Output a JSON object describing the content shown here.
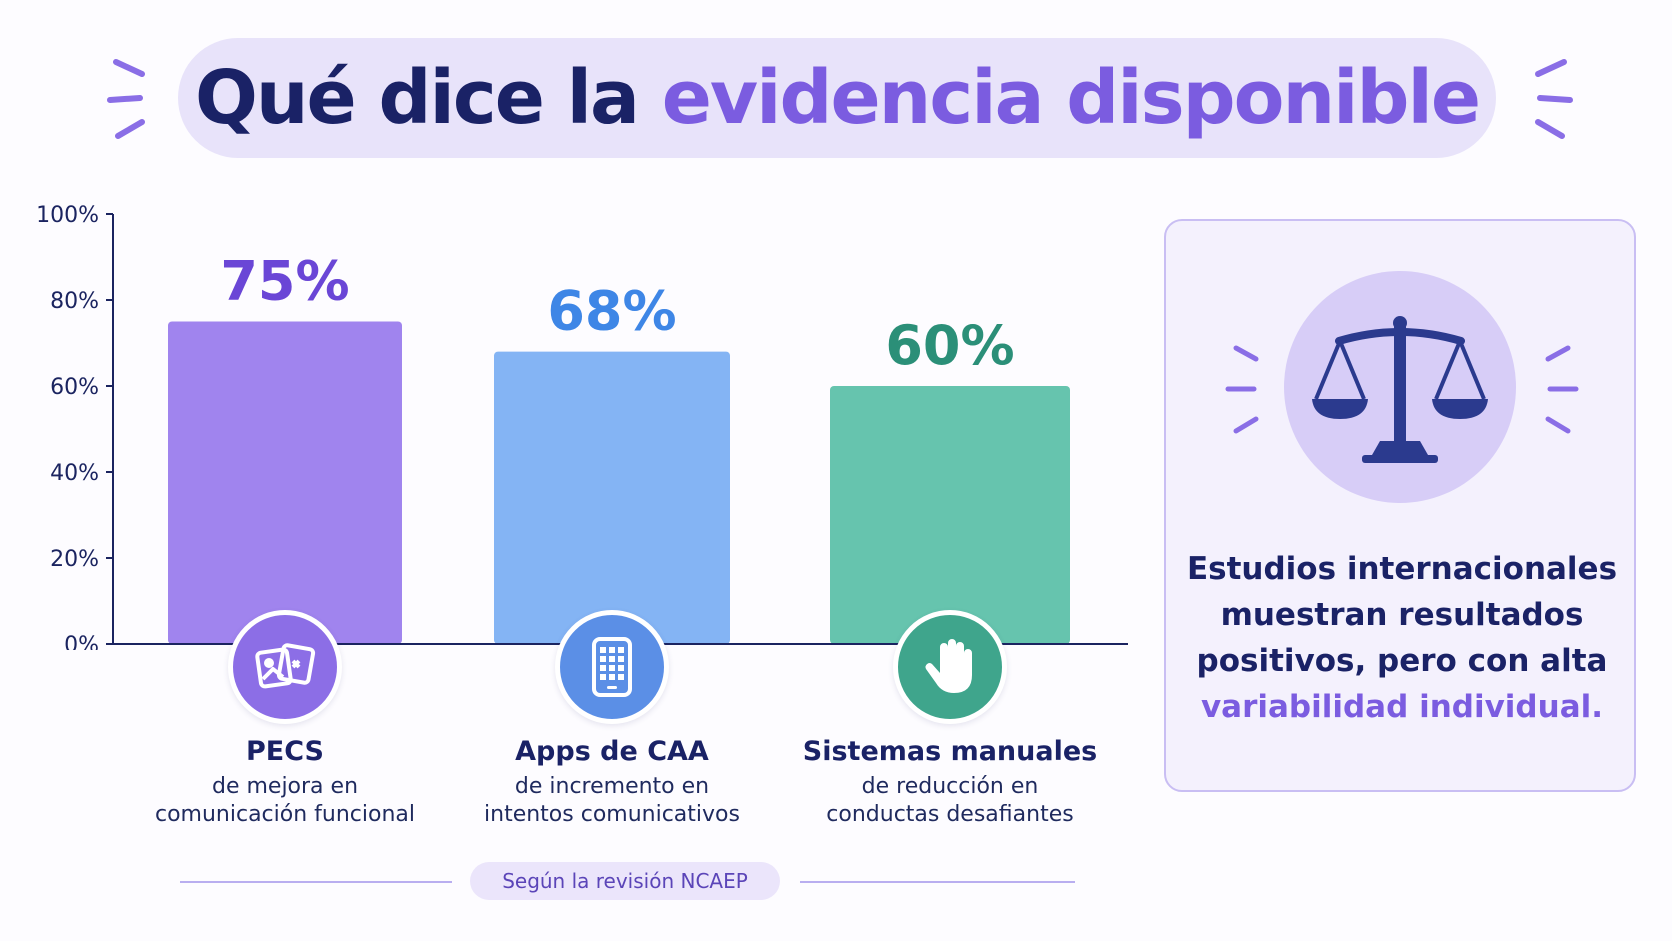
{
  "header": {
    "title_part1": "Qué dice la",
    "title_part2": "evidencia disponible"
  },
  "chart_data": {
    "type": "bar",
    "categories": [
      "PECS",
      "Apps de CAA",
      "Sistemas manuales"
    ],
    "values": [
      75,
      68,
      60
    ],
    "value_labels": [
      "75%",
      "68%",
      "60%"
    ],
    "colors": [
      "#a084ee",
      "#84b4f4",
      "#66c4ae"
    ],
    "label_colors": [
      "#6a46d6",
      "#3e86e6",
      "#2b8f78"
    ],
    "yticks": [
      "0%",
      "20%",
      "40%",
      "60%",
      "80%",
      "100%"
    ],
    "ylim": [
      0,
      100
    ],
    "grid": false
  },
  "categories": [
    {
      "name": "PECS",
      "desc1": "de mejora en",
      "desc2": "comunicación funcional",
      "icon": "photo-cards-icon",
      "color": "#8c6ee6"
    },
    {
      "name": "Apps de CAA",
      "desc1": "de incremento en",
      "desc2": "intentos comunicativos",
      "icon": "tablet-icon",
      "color": "#5b8fe6"
    },
    {
      "name": "Sistemas manuales",
      "desc1": "de reducción en",
      "desc2": "conductas desafiantes",
      "icon": "hand-icon",
      "color": "#3fa58c"
    }
  ],
  "source": "Según la revisión NCAEP",
  "card": {
    "icon": "scales-icon",
    "text_part1": "Estudios internacionales muestran resultados positivos, pero con alta",
    "text_part2": "variabilidad individual."
  }
}
